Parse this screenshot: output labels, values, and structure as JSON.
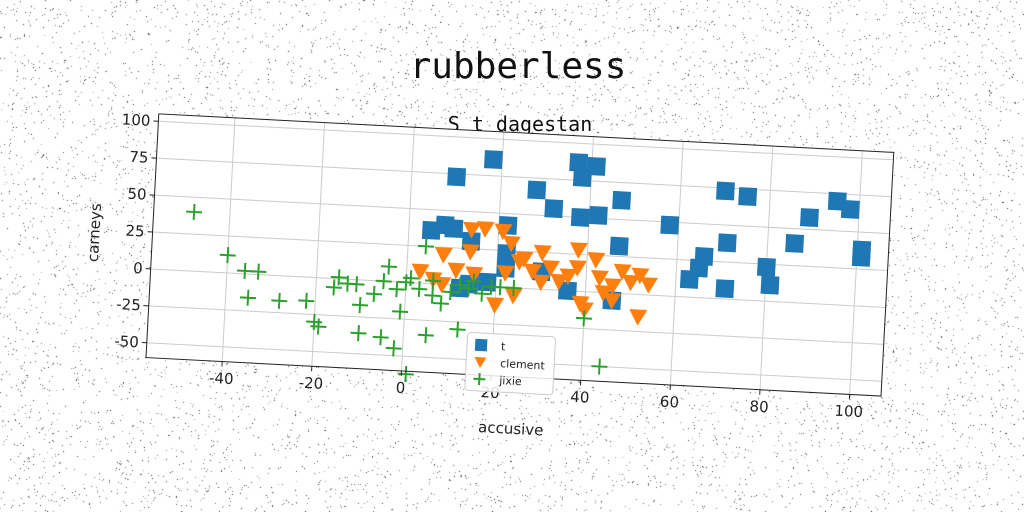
{
  "chart_data": {
    "type": "scatter",
    "title": "rubberless",
    "subtitle": "S t dagestan",
    "xlabel": "accusive",
    "ylabel": "carneys",
    "xlim": [
      -57,
      107
    ],
    "ylim": [
      -60,
      105
    ],
    "xticks": [
      -40,
      -20,
      0,
      20,
      40,
      60,
      80,
      100
    ],
    "yticks": [
      -50,
      -25,
      0,
      25,
      50,
      75,
      100
    ],
    "grid": true,
    "legend_position": "lower-center",
    "series": [
      {
        "name": "t",
        "color": "#1f77b4",
        "marker": "square",
        "points": [
          [
            10,
            73
          ],
          [
            18,
            86
          ],
          [
            28,
            67
          ],
          [
            32,
            55
          ],
          [
            37,
            87
          ],
          [
            38,
            77
          ],
          [
            38,
            50
          ],
          [
            41,
            85
          ],
          [
            42,
            52
          ],
          [
            47,
            63
          ],
          [
            58,
            48
          ],
          [
            8,
            40
          ],
          [
            10,
            38
          ],
          [
            5,
            36
          ],
          [
            14,
            30
          ],
          [
            22,
            42
          ],
          [
            22,
            23
          ],
          [
            47,
            32
          ],
          [
            22,
            13
          ],
          [
            18,
            3
          ],
          [
            14,
            1
          ],
          [
            12,
            -2
          ],
          [
            30,
            12
          ],
          [
            36,
            0
          ],
          [
            46,
            -5
          ],
          [
            63,
            12
          ],
          [
            65,
            20
          ],
          [
            66,
            28
          ],
          [
            70,
            73
          ],
          [
            75,
            70
          ],
          [
            71,
            38
          ],
          [
            80,
            23
          ],
          [
            81,
            11
          ],
          [
            86,
            40
          ],
          [
            89,
            58
          ],
          [
            95,
            70
          ],
          [
            98,
            65
          ],
          [
            101,
            38
          ],
          [
            101,
            33
          ],
          [
            71,
            7
          ]
        ]
      },
      {
        "name": "clement",
        "color": "#ff7f0e",
        "marker": "triangle_down",
        "points": [
          [
            14,
            38
          ],
          [
            17,
            39
          ],
          [
            21,
            38
          ],
          [
            23,
            30
          ],
          [
            14,
            23
          ],
          [
            8,
            20
          ],
          [
            11,
            10
          ],
          [
            3,
            8
          ],
          [
            6,
            3
          ],
          [
            8,
            0
          ],
          [
            15,
            8
          ],
          [
            22,
            10
          ],
          [
            25,
            18
          ],
          [
            28,
            12
          ],
          [
            30,
            5
          ],
          [
            32,
            15
          ],
          [
            34,
            6
          ],
          [
            36,
            10
          ],
          [
            38,
            16
          ],
          [
            38,
            28
          ],
          [
            42,
            22
          ],
          [
            43,
            10
          ],
          [
            44,
            0
          ],
          [
            46,
            5
          ],
          [
            48,
            15
          ],
          [
            50,
            8
          ],
          [
            52,
            13
          ],
          [
            54,
            7
          ],
          [
            46,
            -5
          ],
          [
            39,
            -8
          ],
          [
            52,
            -15
          ],
          [
            24,
            -5
          ],
          [
            20,
            -12
          ],
          [
            30,
            25
          ],
          [
            40,
            -12
          ],
          [
            26,
            20
          ]
        ]
      },
      {
        "name": "jixie",
        "color": "#2ca02c",
        "marker": "plus",
        "points": [
          [
            -48,
            40
          ],
          [
            -40,
            12
          ],
          [
            -36,
            2
          ],
          [
            -33,
            2
          ],
          [
            -35,
            -16
          ],
          [
            -28,
            -17
          ],
          [
            -22,
            -16
          ],
          [
            -20,
            -30
          ],
          [
            -19,
            -33
          ],
          [
            -16,
            -6
          ],
          [
            -15,
            1
          ],
          [
            -13,
            -3
          ],
          [
            -11,
            -3
          ],
          [
            -10,
            -17
          ],
          [
            -10,
            -36
          ],
          [
            -7,
            -9
          ],
          [
            -5,
            0
          ],
          [
            -5,
            -38
          ],
          [
            -4,
            10
          ],
          [
            -2,
            -5
          ],
          [
            -1,
            -20
          ],
          [
            0,
            0
          ],
          [
            1,
            3
          ],
          [
            3,
            -4
          ],
          [
            4,
            25
          ],
          [
            6,
            2
          ],
          [
            6,
            -8
          ],
          [
            5,
            -35
          ],
          [
            8,
            -13
          ],
          [
            10,
            -5
          ],
          [
            12,
            0
          ],
          [
            14,
            -2
          ],
          [
            15,
            3
          ],
          [
            17,
            -5
          ],
          [
            19,
            0
          ],
          [
            21,
            0
          ],
          [
            24,
            0
          ],
          [
            40,
            -18
          ],
          [
            44,
            -50
          ],
          [
            -2,
            -45
          ],
          [
            1,
            -62
          ],
          [
            12,
            -30
          ]
        ]
      }
    ]
  }
}
